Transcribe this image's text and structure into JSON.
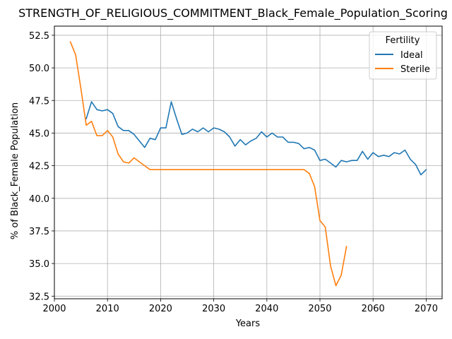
{
  "chart_data": {
    "type": "line",
    "title": "STRENGTH_OF_RELIGIOUS_COMMITMENT_Black_Female_Population_Scoring",
    "xlabel": "Years",
    "ylabel": "% of Black_Female Population",
    "xlim": [
      2000,
      2073
    ],
    "ylim": [
      32.3,
      53.2
    ],
    "x_ticks": [
      2000,
      2010,
      2020,
      2030,
      2040,
      2050,
      2060,
      2070
    ],
    "y_ticks": [
      32.5,
      35.0,
      37.5,
      40.0,
      42.5,
      45.0,
      47.5,
      50.0,
      52.5
    ],
    "y_tick_labels": [
      "32.5",
      "35.0",
      "37.5",
      "40.0",
      "42.5",
      "45.0",
      "47.5",
      "50.0",
      "52.5"
    ],
    "grid": true,
    "legend": {
      "title": "Fertility",
      "position": "top-right"
    },
    "series": [
      {
        "name": "Ideal",
        "color": "#1f77b4",
        "x": [
          2006,
          2007,
          2008,
          2009,
          2010,
          2011,
          2012,
          2013,
          2014,
          2015,
          2016,
          2017,
          2018,
          2019,
          2020,
          2021,
          2022,
          2023,
          2024,
          2025,
          2026,
          2027,
          2028,
          2029,
          2030,
          2031,
          2032,
          2033,
          2034,
          2035,
          2036,
          2037,
          2038,
          2039,
          2040,
          2041,
          2042,
          2043,
          2044,
          2045,
          2046,
          2047,
          2048,
          2049,
          2050,
          2051,
          2052,
          2053,
          2054,
          2055,
          2056,
          2057,
          2058,
          2059,
          2060,
          2061,
          2062,
          2063,
          2064,
          2065,
          2066,
          2067,
          2068,
          2069,
          2070
        ],
        "values": [
          46.1,
          47.4,
          46.8,
          46.7,
          46.8,
          46.5,
          45.5,
          45.2,
          45.2,
          44.9,
          44.4,
          43.9,
          44.6,
          44.5,
          45.4,
          45.4,
          47.4,
          46.1,
          44.9,
          45.0,
          45.3,
          45.1,
          45.4,
          45.1,
          45.4,
          45.3,
          45.1,
          44.7,
          44.0,
          44.5,
          44.1,
          44.4,
          44.6,
          45.1,
          44.7,
          45.0,
          44.7,
          44.7,
          44.3,
          44.3,
          44.2,
          43.8,
          43.9,
          43.7,
          42.9,
          43.0,
          42.7,
          42.4,
          42.9,
          42.8,
          42.9,
          42.9,
          43.6,
          43.0,
          43.5,
          43.2,
          43.3,
          43.2,
          43.5,
          43.4,
          43.7,
          43.0,
          42.6,
          41.8,
          42.2
        ]
      },
      {
        "name": "Sterile",
        "color": "#ff7f0e",
        "x": [
          2003,
          2004,
          2005,
          2006,
          2007,
          2008,
          2009,
          2010,
          2011,
          2012,
          2013,
          2014,
          2015,
          2016,
          2017,
          2018,
          2019,
          2020,
          2021,
          2022,
          2023,
          2024,
          2025,
          2026,
          2027,
          2028,
          2029,
          2030,
          2031,
          2032,
          2033,
          2034,
          2035,
          2036,
          2037,
          2038,
          2039,
          2040,
          2041,
          2042,
          2043,
          2044,
          2045,
          2046,
          2047,
          2048,
          2049,
          2050,
          2051,
          2052,
          2053,
          2054,
          2055
        ],
        "values": [
          52.0,
          51.0,
          48.4,
          45.6,
          45.9,
          44.8,
          44.8,
          45.2,
          44.7,
          43.4,
          42.8,
          42.7,
          43.1,
          42.8,
          42.5,
          42.2,
          42.2,
          42.2,
          42.2,
          42.2,
          42.2,
          42.2,
          42.2,
          42.2,
          42.2,
          42.2,
          42.2,
          42.2,
          42.2,
          42.2,
          42.2,
          42.2,
          42.2,
          42.2,
          42.2,
          42.2,
          42.2,
          42.2,
          42.2,
          42.2,
          42.2,
          42.2,
          42.2,
          42.2,
          42.2,
          41.9,
          40.9,
          38.3,
          37.8,
          34.8,
          33.3,
          34.1,
          36.3
        ]
      }
    ]
  }
}
